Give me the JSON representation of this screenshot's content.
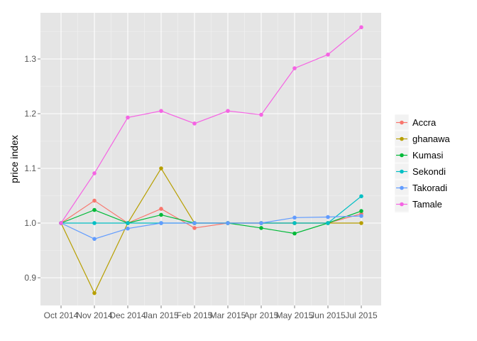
{
  "chart_data": {
    "type": "line",
    "title": "",
    "xlabel": "",
    "ylabel": "price index",
    "x": [
      "Oct 2014",
      "Nov 2014",
      "Dec 2014",
      "Jan 2015",
      "Feb 2015",
      "Mar 2015",
      "Apr 2015",
      "May 2015",
      "Jun 2015",
      "Jul 2015"
    ],
    "ylim": [
      0.85,
      1.375
    ],
    "yticks": [
      0.9,
      1.0,
      1.1,
      1.2,
      1.3
    ],
    "ytick_labels": [
      "0.9",
      "1.0",
      "1.1",
      "1.2",
      "1.3"
    ],
    "grid": true,
    "legend_position": "right",
    "series": [
      {
        "name": "Accra",
        "color": "#F8766D",
        "values": [
          1.0,
          1.041,
          1.0,
          1.026,
          0.991,
          1.0,
          1.0,
          1.0,
          1.0,
          1.017
        ]
      },
      {
        "name": "ghanawa",
        "color": "#B79F00",
        "values": [
          1.0,
          0.872,
          1.0,
          1.1,
          1.0,
          1.0,
          1.0,
          1.0,
          1.0,
          1.0
        ]
      },
      {
        "name": "Kumasi",
        "color": "#00BA38",
        "values": [
          1.0,
          1.024,
          1.0,
          1.015,
          1.0,
          1.0,
          0.991,
          0.981,
          1.0,
          1.022
        ]
      },
      {
        "name": "Sekondi",
        "color": "#00BFC4",
        "values": [
          1.0,
          1.0,
          1.0,
          1.0,
          1.0,
          1.0,
          1.0,
          1.0,
          1.0,
          1.049
        ]
      },
      {
        "name": "Takoradi",
        "color": "#619CFF",
        "values": [
          1.0,
          0.971,
          0.99,
          1.0,
          1.0,
          1.0,
          1.0,
          1.01,
          1.011,
          1.013
        ]
      },
      {
        "name": "Tamale",
        "color": "#F564E3",
        "values": [
          1.0,
          1.091,
          1.193,
          1.205,
          1.182,
          1.205,
          1.198,
          1.283,
          1.308,
          1.358
        ]
      }
    ]
  }
}
